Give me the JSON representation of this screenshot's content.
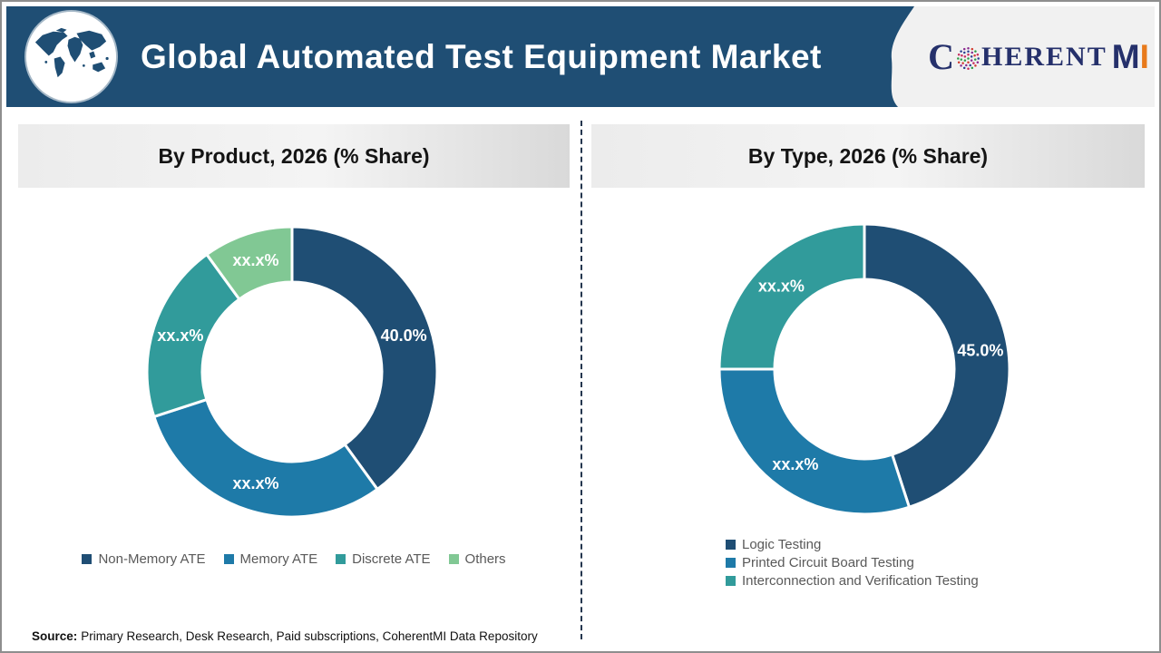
{
  "header": {
    "title": "Global Automated Test Equipment Market",
    "brand": {
      "c": "C",
      "herent": "HERENT",
      "m": "M",
      "i": "I"
    }
  },
  "colors": {
    "header_bg": "#1F4E74",
    "navy": "#1F4E74",
    "blue": "#1E7AA8",
    "teal": "#319B9B",
    "green": "#81C894",
    "accent_orange": "#E87A1C",
    "legend_text": "#595959"
  },
  "chart_data": [
    {
      "type": "pie",
      "variant": "donut",
      "title": "By Product, 2026 (% Share)",
      "categories": [
        "Non-Memory ATE",
        "Memory ATE",
        "Discrete ATE",
        "Others"
      ],
      "values": [
        40,
        30,
        20,
        10
      ],
      "values_estimated": [
        false,
        true,
        true,
        true
      ],
      "slice_labels": [
        "40.0%",
        "xx.x%",
        "xx.x%",
        "xx.x%"
      ],
      "colors": [
        "#1F4E74",
        "#1E7AA8",
        "#319B9B",
        "#81C894"
      ],
      "start_angle_deg": 0,
      "clockwise": true,
      "inner_radius_ratio": 0.62,
      "legend_position": "bottom-horizontal"
    },
    {
      "type": "pie",
      "variant": "donut",
      "title": "By Type, 2026 (% Share)",
      "categories": [
        "Logic Testing",
        "Printed Circuit Board Testing",
        "Interconnection and Verification Testing"
      ],
      "values": [
        45,
        30,
        25
      ],
      "values_estimated": [
        false,
        true,
        true
      ],
      "slice_labels": [
        "45.0%",
        "xx.x%",
        "xx.x%"
      ],
      "colors": [
        "#1F4E74",
        "#1E7AA8",
        "#319B9B"
      ],
      "start_angle_deg": 0,
      "clockwise": true,
      "inner_radius_ratio": 0.62,
      "legend_position": "bottom-left-vertical"
    }
  ],
  "footer": {
    "source_label": "Source:",
    "source_text": "Primary Research, Desk Research, Paid subscriptions, CoherentMI Data Repository"
  }
}
